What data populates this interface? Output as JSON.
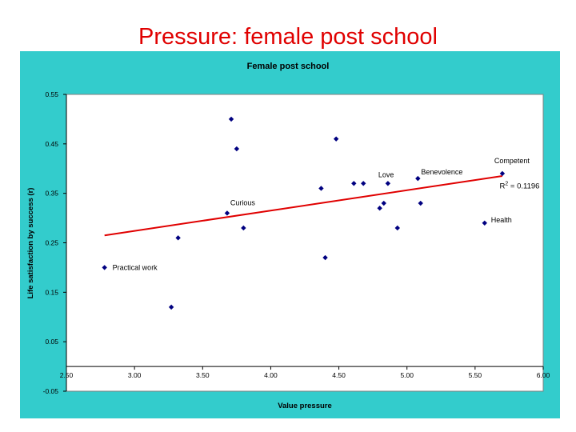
{
  "slide": {
    "title": "Pressure: female post school"
  },
  "chart_data": {
    "type": "scatter",
    "title": "Female post school",
    "xlabel": "Value pressure",
    "ylabel": "Life satisfaction by success (r)",
    "xlim": [
      2.5,
      6.0
    ],
    "ylim": [
      -0.05,
      0.55
    ],
    "x_ticks": [
      "2.50",
      "3.00",
      "3.50",
      "4.00",
      "4.50",
      "5.00",
      "5.50",
      "6.00"
    ],
    "y_ticks": [
      "0.55",
      "0.45",
      "0.35",
      "0.25",
      "0.15",
      "0.05",
      "-0.05"
    ],
    "x_axis_crosses_y": 0,
    "gridlines": false,
    "point_color": "#000080",
    "trend_color": "#e00000",
    "points": [
      {
        "x": 2.78,
        "y": 0.2,
        "label": "Practical work"
      },
      {
        "x": 3.27,
        "y": 0.12,
        "label": ""
      },
      {
        "x": 3.32,
        "y": 0.26,
        "label": ""
      },
      {
        "x": 3.68,
        "y": 0.31,
        "label": "Curious"
      },
      {
        "x": 3.71,
        "y": 0.5,
        "label": ""
      },
      {
        "x": 3.75,
        "y": 0.44,
        "label": ""
      },
      {
        "x": 3.8,
        "y": 0.28,
        "label": ""
      },
      {
        "x": 4.37,
        "y": 0.36,
        "label": ""
      },
      {
        "x": 4.4,
        "y": 0.22,
        "label": ""
      },
      {
        "x": 4.48,
        "y": 0.46,
        "label": ""
      },
      {
        "x": 4.61,
        "y": 0.37,
        "label": ""
      },
      {
        "x": 4.68,
        "y": 0.37,
        "label": ""
      },
      {
        "x": 4.8,
        "y": 0.32,
        "label": ""
      },
      {
        "x": 4.83,
        "y": 0.33,
        "label": ""
      },
      {
        "x": 4.86,
        "y": 0.37,
        "label": "Love"
      },
      {
        "x": 4.93,
        "y": 0.28,
        "label": ""
      },
      {
        "x": 5.08,
        "y": 0.38,
        "label": "Benevolence"
      },
      {
        "x": 5.1,
        "y": 0.33,
        "label": ""
      },
      {
        "x": 5.57,
        "y": 0.29,
        "label": "Health"
      },
      {
        "x": 5.7,
        "y": 0.39,
        "label": "Competent"
      }
    ],
    "trendline": {
      "x0": 2.78,
      "y0": 0.265,
      "x1": 5.7,
      "y1": 0.385
    },
    "annotation": {
      "text_main": "R",
      "text_sup": "2",
      "text_rest": " = 0.1196",
      "x": 5.68,
      "y": 0.36
    }
  }
}
